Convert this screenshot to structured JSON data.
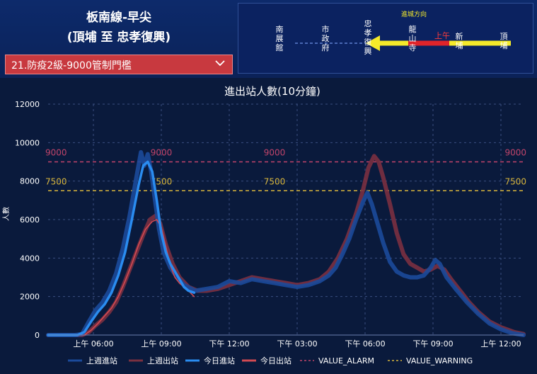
{
  "header": {
    "line_name": "板南線-早尖",
    "range": "(頂埔 至 忠孝復興)",
    "scenario": "21.防疫2級-9000管制門檻"
  },
  "direction": {
    "label": "進城方向",
    "period": "上午",
    "stations": [
      "南展館",
      "市政府",
      "忠孝復興",
      "龍山寺",
      "新埔",
      "頂埔"
    ]
  },
  "colors": {
    "alarm": "#c0446a",
    "warning": "#d6b43c",
    "last_week_entry": "#1b4a9a",
    "last_week_exit": "#7a3040",
    "today_entry": "#2a8cf0",
    "today_exit": "#d24a52"
  },
  "chart_data": {
    "type": "line",
    "title": "進出站人數(10分鐘)",
    "ylabel": "人數",
    "ylim": [
      0,
      12000
    ],
    "xlim": [
      4,
      25
    ],
    "yticks": [
      0,
      2000,
      4000,
      6000,
      8000,
      10000,
      12000
    ],
    "xticks": [
      {
        "x": 6,
        "label": "上午 06:00"
      },
      {
        "x": 9,
        "label": "上午 09:00"
      },
      {
        "x": 12,
        "label": "下午 12:00"
      },
      {
        "x": 15,
        "label": "下午 03:00"
      },
      {
        "x": 18,
        "label": "下午 06:00"
      },
      {
        "x": 21,
        "label": "下午 09:00"
      },
      {
        "x": 24,
        "label": "上午 12:00"
      }
    ],
    "thresholds": [
      {
        "name": "VALUE_ALARM",
        "value": 9000,
        "label": "9000",
        "label_x": [
          4,
          9,
          14,
          24
        ]
      },
      {
        "name": "VALUE_WARNING",
        "value": 7500,
        "label": "7500",
        "label_x": [
          4,
          9,
          14,
          24
        ]
      }
    ],
    "legend_position": "bottom",
    "series": [
      {
        "name": "上週進站",
        "key": "last_week_entry",
        "points": [
          [
            4,
            0
          ],
          [
            5.2,
            0
          ],
          [
            5.5,
            50
          ],
          [
            5.8,
            700
          ],
          [
            6.1,
            1300
          ],
          [
            6.4,
            1700
          ],
          [
            6.7,
            2300
          ],
          [
            7.0,
            3200
          ],
          [
            7.3,
            4500
          ],
          [
            7.6,
            6200
          ],
          [
            7.9,
            8200
          ],
          [
            8.1,
            9500
          ],
          [
            8.25,
            8800
          ],
          [
            8.4,
            9400
          ],
          [
            8.55,
            8500
          ],
          [
            8.7,
            7200
          ],
          [
            8.9,
            5500
          ],
          [
            9.1,
            4300
          ],
          [
            9.4,
            3500
          ],
          [
            9.7,
            3000
          ],
          [
            10.0,
            2600
          ],
          [
            10.5,
            2300
          ],
          [
            11.0,
            2400
          ],
          [
            11.5,
            2500
          ],
          [
            12.0,
            2800
          ],
          [
            12.5,
            2700
          ],
          [
            13.0,
            2900
          ],
          [
            13.5,
            2800
          ],
          [
            14.0,
            2700
          ],
          [
            14.5,
            2600
          ],
          [
            15.0,
            2500
          ],
          [
            15.5,
            2600
          ],
          [
            16.0,
            2800
          ],
          [
            16.4,
            3100
          ],
          [
            16.7,
            3500
          ],
          [
            17.0,
            4200
          ],
          [
            17.3,
            5000
          ],
          [
            17.6,
            6000
          ],
          [
            17.9,
            6900
          ],
          [
            18.1,
            7400
          ],
          [
            18.3,
            6800
          ],
          [
            18.5,
            6000
          ],
          [
            18.8,
            4800
          ],
          [
            19.1,
            3800
          ],
          [
            19.4,
            3300
          ],
          [
            19.7,
            3100
          ],
          [
            20.0,
            3000
          ],
          [
            20.3,
            3000
          ],
          [
            20.6,
            3100
          ],
          [
            20.9,
            3500
          ],
          [
            21.1,
            3900
          ],
          [
            21.3,
            3700
          ],
          [
            21.6,
            3000
          ],
          [
            22.0,
            2400
          ],
          [
            22.5,
            1700
          ],
          [
            23.0,
            1100
          ],
          [
            23.5,
            600
          ],
          [
            24.0,
            300
          ],
          [
            24.5,
            100
          ],
          [
            25,
            0
          ]
        ]
      },
      {
        "name": "上週出站",
        "key": "last_week_exit",
        "points": [
          [
            4,
            0
          ],
          [
            5.5,
            0
          ],
          [
            5.8,
            150
          ],
          [
            6.1,
            500
          ],
          [
            6.4,
            800
          ],
          [
            6.7,
            1200
          ],
          [
            7.0,
            1700
          ],
          [
            7.3,
            2500
          ],
          [
            7.6,
            3400
          ],
          [
            7.9,
            4300
          ],
          [
            8.2,
            5200
          ],
          [
            8.5,
            6000
          ],
          [
            8.75,
            6200
          ],
          [
            8.95,
            5800
          ],
          [
            9.2,
            4700
          ],
          [
            9.5,
            3700
          ],
          [
            9.8,
            3000
          ],
          [
            10.2,
            2500
          ],
          [
            10.6,
            2300
          ],
          [
            11.0,
            2300
          ],
          [
            11.5,
            2400
          ],
          [
            12.0,
            2600
          ],
          [
            12.5,
            2800
          ],
          [
            13.0,
            3000
          ],
          [
            13.5,
            2900
          ],
          [
            14.0,
            2800
          ],
          [
            14.5,
            2700
          ],
          [
            15.0,
            2600
          ],
          [
            15.5,
            2700
          ],
          [
            16.0,
            2900
          ],
          [
            16.4,
            3300
          ],
          [
            16.8,
            4000
          ],
          [
            17.2,
            5000
          ],
          [
            17.6,
            6300
          ],
          [
            17.9,
            7500
          ],
          [
            18.15,
            8700
          ],
          [
            18.4,
            9300
          ],
          [
            18.6,
            9000
          ],
          [
            18.8,
            8200
          ],
          [
            19.1,
            6800
          ],
          [
            19.4,
            5300
          ],
          [
            19.7,
            4200
          ],
          [
            20.0,
            3700
          ],
          [
            20.3,
            3500
          ],
          [
            20.6,
            3300
          ],
          [
            20.9,
            3400
          ],
          [
            21.2,
            3600
          ],
          [
            21.5,
            3400
          ],
          [
            21.8,
            2900
          ],
          [
            22.2,
            2300
          ],
          [
            22.6,
            1700
          ],
          [
            23.0,
            1200
          ],
          [
            23.5,
            700
          ],
          [
            24.0,
            400
          ],
          [
            24.6,
            150
          ],
          [
            25,
            50
          ]
        ]
      },
      {
        "name": "今日進站",
        "key": "today_entry",
        "points": [
          [
            4,
            0
          ],
          [
            5.3,
            0
          ],
          [
            5.6,
            150
          ],
          [
            5.9,
            700
          ],
          [
            6.2,
            1200
          ],
          [
            6.5,
            1600
          ],
          [
            6.8,
            2200
          ],
          [
            7.1,
            3100
          ],
          [
            7.4,
            4300
          ],
          [
            7.7,
            6000
          ],
          [
            8.0,
            7800
          ],
          [
            8.2,
            8800
          ],
          [
            8.4,
            9000
          ],
          [
            8.6,
            8500
          ],
          [
            8.8,
            7000
          ],
          [
            9.0,
            5300
          ],
          [
            9.2,
            4300
          ],
          [
            9.4,
            3700
          ],
          [
            9.6,
            3300
          ],
          [
            9.8,
            2900
          ],
          [
            10.0,
            2500
          ],
          [
            10.2,
            2300
          ],
          [
            10.45,
            2200
          ]
        ]
      },
      {
        "name": "今日出站",
        "key": "today_exit",
        "points": [
          [
            4,
            0
          ],
          [
            5.6,
            0
          ],
          [
            5.9,
            250
          ],
          [
            6.2,
            600
          ],
          [
            6.5,
            1000
          ],
          [
            6.8,
            1400
          ],
          [
            7.1,
            2000
          ],
          [
            7.4,
            2800
          ],
          [
            7.7,
            3700
          ],
          [
            8.0,
            4700
          ],
          [
            8.3,
            5500
          ],
          [
            8.6,
            5900
          ],
          [
            8.8,
            6000
          ],
          [
            9.0,
            5600
          ],
          [
            9.2,
            4600
          ],
          [
            9.4,
            3600
          ],
          [
            9.6,
            3000
          ],
          [
            9.8,
            2700
          ],
          [
            10.0,
            2500
          ],
          [
            10.2,
            2300
          ],
          [
            10.45,
            2000
          ]
        ]
      }
    ]
  }
}
